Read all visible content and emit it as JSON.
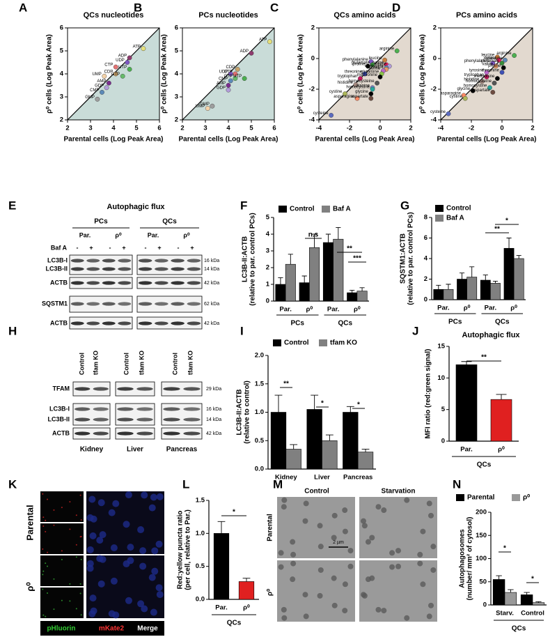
{
  "chart_data": [
    {
      "type": "scatter",
      "panel": "A",
      "title": "QCs nucleotides",
      "xlabel": "Parental cells (Log Peak Area)",
      "ylabel": "ρ⁰ cells (Log Peak Area)",
      "xlim": [
        2,
        6
      ],
      "ylim": [
        2,
        6
      ],
      "xticks": [
        2,
        3,
        4,
        5,
        6
      ],
      "yticks": [
        2,
        3,
        4,
        5,
        6
      ],
      "shade_color": "#c9dcd8",
      "point_labels": [
        "ATP",
        "ADP",
        "UDP",
        "UTP",
        "CTP",
        "CDP",
        "GTP",
        "UMP",
        "AMP",
        "GDP",
        "CMP",
        "GMP"
      ],
      "x": [
        5.3,
        4.7,
        4.6,
        4.7,
        4.1,
        4.1,
        4.4,
        3.6,
        3.8,
        3.7,
        3.5,
        3.3
      ],
      "values": [
        5.1,
        4.7,
        4.5,
        4.2,
        4.3,
        4.0,
        3.9,
        3.9,
        3.6,
        3.4,
        3.2,
        2.9
      ],
      "colors": [
        "#e6e07a",
        "#8e3b6e",
        "#7e57c2",
        "#4caf50",
        "#e57373",
        "#c8a26a",
        "#66bb6a",
        "#f4d2a8",
        "#7b2d8e",
        "#b39ddb",
        "#5c8ab8",
        "#9e9e9e"
      ]
    },
    {
      "type": "scatter",
      "panel": "B",
      "title": "PCs nucleotides",
      "xlabel": "Parental cells (Log Peak Area)",
      "ylabel": "ρ⁰ cells (Log Peak Area)",
      "xlim": [
        2,
        6
      ],
      "ylim": [
        2,
        6
      ],
      "xticks": [
        2,
        3,
        4,
        5,
        6
      ],
      "yticks": [
        2,
        3,
        4,
        5,
        6
      ],
      "shade_color": "#c9dcd8",
      "point_labels": [
        "ATP",
        "ADP",
        "CDP",
        "UDP",
        "CTP",
        "GTP",
        "UTP",
        "CMP",
        "AMP",
        "GDP",
        "GMP",
        "UMP"
      ],
      "x": [
        5.8,
        5.0,
        4.4,
        4.1,
        4.3,
        4.3,
        4.7,
        4.1,
        4.0,
        4.0,
        3.3,
        3.1
      ],
      "values": [
        5.4,
        4.9,
        4.2,
        4.0,
        4.0,
        3.8,
        3.8,
        3.7,
        3.5,
        3.3,
        2.6,
        2.5
      ],
      "colors": [
        "#e6e07a",
        "#8e3b6e",
        "#c8a26a",
        "#7e57c2",
        "#e57373",
        "#66bb6a",
        "#4caf50",
        "#5c8ab8",
        "#7b2d8e",
        "#b39ddb",
        "#9e9e9e",
        "#f4d2a8"
      ]
    },
    {
      "type": "scatter",
      "panel": "C",
      "title": "QCs amino acids",
      "xlabel": "Parental cells (Log Peak Area)",
      "ylabel": "ρ⁰ cells (Log Peak Area)",
      "xlim": [
        -4,
        2
      ],
      "ylim": [
        -4,
        2
      ],
      "xticks": [
        -4,
        -2,
        0,
        2
      ],
      "yticks": [
        -4,
        -2,
        0,
        2
      ],
      "shade_color": "#e2d9cf",
      "point_labels": [
        "arginine",
        "leucine",
        "phenylalanine",
        "lysine",
        "tyrosine",
        "glutamate",
        "isoleucine",
        "valine",
        "proline",
        "threonine",
        "serine",
        "glutamine",
        "methionine",
        "tryptophan",
        "homocysteine",
        "histidine",
        "alanine",
        "homocystine",
        "cystine",
        "glycine",
        "asparagine",
        "aspartate",
        "cysteine"
      ],
      "x": [
        1.1,
        0.3,
        -0.6,
        0.4,
        0.6,
        -0.5,
        0.4,
        0.4,
        -0.8,
        -1.0,
        0.2,
        0.1,
        0.0,
        -1.3,
        -0.2,
        -1.6,
        -0.5,
        -0.5,
        -2.3,
        -0.6,
        -1.5,
        -0.6,
        -3.2
      ],
      "values": [
        0.5,
        -0.1,
        -0.2,
        -0.4,
        -0.5,
        -0.4,
        -0.6,
        -0.7,
        -0.5,
        -1.0,
        -0.8,
        -1.0,
        -1.2,
        -1.3,
        -1.6,
        -1.7,
        -1.9,
        -2.0,
        -2.3,
        -2.3,
        -2.6,
        -2.6,
        -3.7
      ],
      "colors": [
        "#4caf50",
        "#c97d3a",
        "#7e57c2",
        "#e91e63",
        "#b39ddb",
        "#388e3c",
        "#5c8ab8",
        "#e59866",
        "#000000",
        "#3f51b5",
        "#ba68c8",
        "#8bc34a",
        "#000000",
        "#c2185b",
        "#555555",
        "#a1887f",
        "#7986cb",
        "#26a69a",
        "#aeb85a",
        "#000000",
        "#ff8a65",
        "#6d4c41",
        "#5c6bc0"
      ]
    },
    {
      "type": "scatter",
      "panel": "D",
      "title": "PCs amino acids",
      "xlabel": "Parental cells (Log Peak Area)",
      "ylabel": "ρ⁰ cells (Log Peak Area)",
      "xlim": [
        -4,
        2
      ],
      "ylim": [
        -4,
        2
      ],
      "xticks": [
        -4,
        -2,
        0,
        2
      ],
      "yticks": [
        -4,
        -2,
        0,
        2
      ],
      "shade_color": "#e2d9cf",
      "point_labels": [
        "arginine",
        "leucine",
        "lysine",
        "isoleucine",
        "phenylalanine",
        "glutamate",
        "valine",
        "proline",
        "tyrosine",
        "threonine",
        "tryptophan",
        "methionine",
        "histidine",
        "homocysteine",
        "homocystine",
        "glycine",
        "aspartate",
        "asparagine",
        "cystine",
        "cysteine"
      ],
      "x": [
        0.8,
        -0.3,
        -0.2,
        0.2,
        -0.6,
        0.0,
        -0.4,
        0.1,
        -1.0,
        0.0,
        -1.0,
        -0.3,
        -1.3,
        -0.5,
        -0.8,
        -1.9,
        -0.6,
        -2.5,
        -2.4,
        -3.5
      ],
      "values": [
        0.2,
        0.1,
        -0.1,
        -0.1,
        -0.3,
        -0.3,
        -0.5,
        -0.6,
        -0.9,
        -0.9,
        -1.2,
        -1.3,
        -1.5,
        -1.6,
        -1.9,
        -2.1,
        -2.2,
        -2.4,
        -2.6,
        -3.6
      ],
      "colors": [
        "#4caf50",
        "#c97d3a",
        "#e91e63",
        "#5c8ab8",
        "#7e57c2",
        "#388e3c",
        "#e59866",
        "#000000",
        "#ba68c8",
        "#3f51b5",
        "#c2185b",
        "#000000",
        "#a1887f",
        "#555555",
        "#26a69a",
        "#000000",
        "#6d4c41",
        "#ff8a65",
        "#aeb85a",
        "#5c6bc0"
      ]
    },
    {
      "type": "bar",
      "panel": "F",
      "ylabel": [
        "LC3B-II:ACTB",
        "(relative to par. control PCs)"
      ],
      "categories": [
        "Par.",
        "ρ⁰",
        "Par.",
        "ρ⁰"
      ],
      "groups": [
        "PCs",
        "QCs"
      ],
      "series": [
        {
          "name": "Control",
          "color": "#000000",
          "values": [
            1.0,
            1.1,
            3.5,
            0.5
          ],
          "errors": [
            0.4,
            0.4,
            0.5,
            0.15
          ]
        },
        {
          "name": "Baf A",
          "color": "#808080",
          "values": [
            2.2,
            3.2,
            3.7,
            0.6
          ],
          "errors": [
            0.6,
            0.8,
            0.7,
            0.2
          ]
        }
      ],
      "ylim": [
        0,
        5
      ],
      "yticks": [
        0,
        1,
        2,
        3,
        4,
        5
      ],
      "annotations": [
        "n.s",
        "**",
        "***"
      ]
    },
    {
      "type": "bar",
      "panel": "G",
      "ylabel": [
        "SQSTM1:ACTB",
        "(relative to par. control PCs)"
      ],
      "categories": [
        "Par.",
        "ρ⁰",
        "Par.",
        "ρ⁰"
      ],
      "groups": [
        "PCs",
        "QCs"
      ],
      "series": [
        {
          "name": "Control",
          "color": "#000000",
          "values": [
            1.0,
            2.0,
            1.9,
            5.0
          ],
          "errors": [
            0.4,
            0.6,
            0.5,
            1.0
          ]
        },
        {
          "name": "Baf A",
          "color": "#808080",
          "values": [
            1.0,
            2.2,
            1.6,
            4.0
          ],
          "errors": [
            0.5,
            1.0,
            0.2,
            0.3
          ]
        }
      ],
      "ylim": [
        0,
        8
      ],
      "yticks": [
        0,
        2,
        4,
        6,
        8
      ],
      "annotations": [
        "**",
        "*"
      ]
    },
    {
      "type": "bar",
      "panel": "I",
      "ylabel": [
        "LC3B-II:ACTB",
        "(relative to control)"
      ],
      "categories": [
        "Kidney",
        "Liver",
        "Pancreas"
      ],
      "series": [
        {
          "name": "Control",
          "color": "#000000",
          "values": [
            1.0,
            1.05,
            1.0
          ],
          "errors": [
            0.3,
            0.25,
            0.1
          ]
        },
        {
          "name": "tfam KO",
          "color": "#808080",
          "values": [
            0.35,
            0.5,
            0.3
          ],
          "errors": [
            0.08,
            0.1,
            0.05
          ]
        }
      ],
      "ylim": [
        0,
        2
      ],
      "yticks": [
        {
          "value": 0,
          "label": "0.0"
        },
        0.5,
        {
          "value": 1,
          "label": "1.0"
        },
        1.5,
        {
          "value": 2,
          "label": "2.0"
        }
      ],
      "annotations": [
        "**",
        "*",
        "*"
      ]
    },
    {
      "type": "bar",
      "panel": "J",
      "title": "Autophagic flux",
      "ylabel": [
        "MFI ratio (red:green signal)"
      ],
      "categories": [
        "Par.",
        "ρ⁰"
      ],
      "group_label": "QCs",
      "values": [
        12.1,
        6.6
      ],
      "errors": [
        0.5,
        0.8
      ],
      "colors": [
        "#000000",
        "#e02020"
      ],
      "ylim": [
        0,
        15
      ],
      "yticks": [
        0,
        5,
        10,
        15
      ],
      "annotations": [
        "**"
      ]
    },
    {
      "type": "bar",
      "panel": "L",
      "ylabel": [
        "Red:yellow puncta ratio",
        "(per cell, relative to Par.)"
      ],
      "categories": [
        "Par.",
        "ρ⁰"
      ],
      "group_label": "QCs",
      "values": [
        1.0,
        0.27
      ],
      "errors": [
        0.18,
        0.05
      ],
      "colors": [
        "#000000",
        "#e02020"
      ],
      "ylim": [
        0,
        1.5
      ],
      "yticks": [
        {
          "value": 0,
          "label": "0.0"
        },
        0.5,
        {
          "value": 1,
          "label": "1.0"
        },
        1.5
      ],
      "annotations": [
        "*"
      ]
    },
    {
      "type": "bar",
      "panel": "N",
      "ylabel": [
        "Autophagosomes",
        "(number/ mm² of cytosol)"
      ],
      "categories": [
        "Starv.",
        "Control"
      ],
      "group_label": "QCs",
      "series": [
        {
          "name": "Parental",
          "color": "#000000",
          "values": [
            55,
            22
          ],
          "errors": [
            8,
            5
          ]
        },
        {
          "name": "ρ⁰",
          "color": "#999999",
          "values": [
            27,
            5
          ],
          "errors": [
            6,
            2
          ]
        }
      ],
      "ylim": [
        0,
        200
      ],
      "yticks": [
        0,
        50,
        100,
        150,
        200
      ],
      "annotations": [
        "*",
        "*"
      ]
    }
  ],
  "blot_E": {
    "panel": "E",
    "title": "Autophagic flux",
    "groups": [
      "PCs",
      "QCs"
    ],
    "conditions": [
      "Par.",
      "ρ⁰",
      "Par.",
      "ρ⁰"
    ],
    "treatment_label": "Baf A",
    "treatment_signs": [
      "-",
      "+",
      "-",
      "+",
      "-",
      "+",
      "-",
      "+"
    ],
    "rows": [
      "LC3B-I",
      "LC3B-II",
      "ACTB",
      "SQSTM1",
      "ACTB"
    ],
    "sizes": [
      "16 kDa",
      "14 kDa",
      "42 kDa",
      "62 kDa",
      "42 kDa"
    ]
  },
  "blot_H": {
    "panel": "H",
    "columns": [
      "Control",
      "tfam KO",
      "Control",
      "tfam KO",
      "Control",
      "tfam KO"
    ],
    "rows": [
      "TFAM",
      "LC3B-I",
      "LC3B-II",
      "ACTB"
    ],
    "sizes": [
      "29 kDa",
      "16 kDa",
      "14 kDa",
      "42 kDa"
    ],
    "tissues": [
      "Kidney",
      "Liver",
      "Pancreas"
    ]
  },
  "images_K": {
    "panel": "K",
    "rows": [
      "Parental",
      "ρ⁰"
    ],
    "channels": [
      "pHluorin",
      "mKate2",
      "Merge"
    ]
  },
  "images_M": {
    "panel": "M",
    "columns": [
      "Control",
      "Starvation"
    ],
    "rows": [
      "Parental",
      "ρ⁰"
    ],
    "scale_bar": "2 µm"
  }
}
